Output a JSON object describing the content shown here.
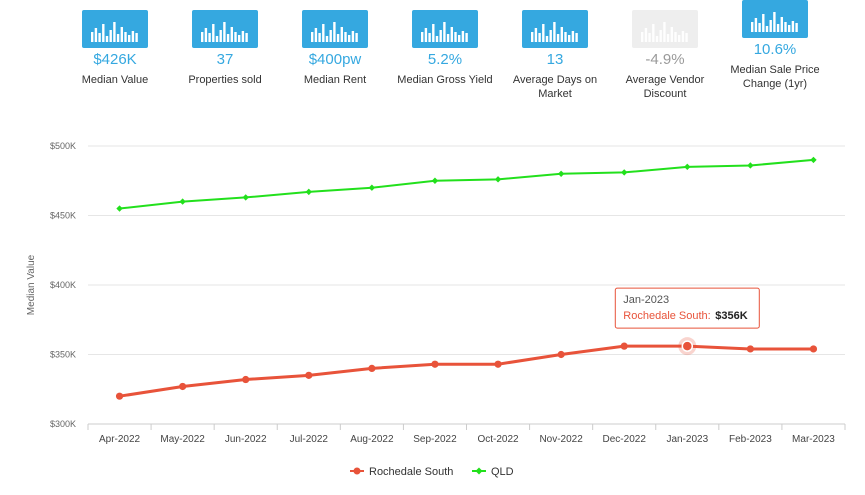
{
  "stats": [
    {
      "value": "$426K",
      "label": "Median Value",
      "faded": false
    },
    {
      "value": "37",
      "label": "Properties sold",
      "faded": false
    },
    {
      "value": "$400pw",
      "label": "Median Rent",
      "faded": false
    },
    {
      "value": "5.2%",
      "label": "Median Gross Yield",
      "faded": false
    },
    {
      "value": "13",
      "label": "Average Days on Market",
      "faded": false
    },
    {
      "value": "-4.9%",
      "label": "Average Vendor Discount",
      "faded": true
    },
    {
      "value": "10.6%",
      "label": "Median Sale Price Change (1yr)",
      "faded": false
    }
  ],
  "colors": {
    "accent": "#35a8e0",
    "series_rochedale": "#e8533a",
    "series_qld": "#22e01c"
  },
  "chart_data": {
    "type": "line",
    "categories": [
      "Apr-2022",
      "May-2022",
      "Jun-2022",
      "Jul-2022",
      "Aug-2022",
      "Sep-2022",
      "Oct-2022",
      "Nov-2022",
      "Dec-2022",
      "Jan-2023",
      "Feb-2023",
      "Mar-2023"
    ],
    "series": [
      {
        "name": "Rochedale South",
        "color": "#e8533a",
        "values": [
          320,
          327,
          332,
          335,
          340,
          343,
          343,
          350,
          356,
          356,
          354,
          354
        ]
      },
      {
        "name": "QLD",
        "color": "#22e01c",
        "values": [
          455,
          460,
          463,
          467,
          470,
          475,
          476,
          480,
          481,
          485,
          486,
          490
        ]
      }
    ],
    "ylabel": "Median Value",
    "ylim": [
      300,
      500
    ],
    "yticks": [
      300,
      350,
      400,
      450,
      500
    ],
    "ytick_labels": [
      "$300K",
      "$350K",
      "$400K",
      "$450K",
      "$500K"
    ],
    "tooltip": {
      "title": "Jan-2023",
      "series": "Rochedale South",
      "value": "$356K",
      "index": 9
    },
    "legend_position": "bottom-center"
  }
}
